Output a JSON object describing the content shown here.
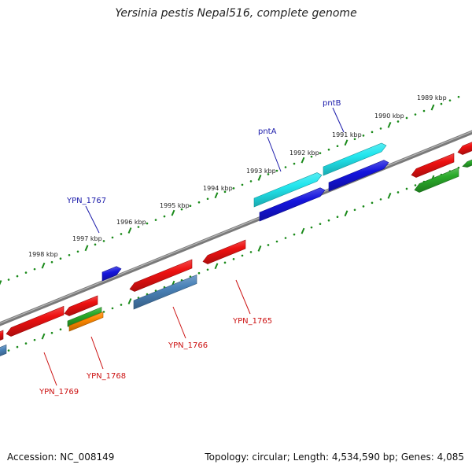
{
  "title": "Yersinia pestis Nepal516, complete genome",
  "footer": {
    "accession": "Accession: NC_008149",
    "summary": "Topology: circular; Length: 4,534,590 bp; Genes: 4,085"
  },
  "colors": {
    "backbone": "#7a7a7a",
    "tick": "#1a8a1a",
    "forward_label": "#1a1aaa",
    "reverse_label": "#cc1111",
    "red": "#ee1111",
    "cyan": "#22e6ee",
    "blue": "#1414dd",
    "steelblue": "#4a82b8",
    "green": "#2aaa2a",
    "orange": "#ff8800"
  },
  "kbp_labels": [
    "1989 kbp",
    "1990 kbp",
    "1991 kbp",
    "1992 kbp",
    "1993 kbp",
    "1994 kbp",
    "1995 kbp",
    "1996 kbp",
    "1997 kbp",
    "1998 kbp"
  ],
  "gene_labels": [
    {
      "text": "pntB",
      "strand": "forward"
    },
    {
      "text": "pntA",
      "strand": "forward"
    },
    {
      "text": "YPN_1767",
      "strand": "forward"
    },
    {
      "text": "YPN_1765",
      "strand": "reverse"
    },
    {
      "text": "YPN_1766",
      "strand": "reverse"
    },
    {
      "text": "YPN_1768",
      "strand": "reverse"
    },
    {
      "text": "YPN_1769",
      "strand": "reverse"
    }
  ],
  "features": [
    {
      "name": "gene-cyan-pntB-segment",
      "color": "cyan"
    },
    {
      "name": "gene-cyan-pntA-segment",
      "color": "cyan"
    },
    {
      "name": "cds-blue-pntB",
      "color": "blue"
    },
    {
      "name": "cds-blue-pntA",
      "color": "blue"
    },
    {
      "name": "cds-blue-ypn1767",
      "color": "blue"
    },
    {
      "name": "gene-red-right-top",
      "color": "red"
    },
    {
      "name": "gene-red-right",
      "color": "red"
    },
    {
      "name": "gene-green-right-top",
      "color": "green"
    },
    {
      "name": "gene-green-right",
      "color": "green"
    },
    {
      "name": "gene-red-ypn1765",
      "color": "red"
    },
    {
      "name": "gene-red-ypn1766",
      "color": "red"
    },
    {
      "name": "cds-steelblue-ypn1766",
      "color": "steelblue"
    },
    {
      "name": "gene-red-ypn1768",
      "color": "red"
    },
    {
      "name": "gene-green-ypn1768",
      "color": "green"
    },
    {
      "name": "cds-orange-ypn1768",
      "color": "orange"
    },
    {
      "name": "gene-red-ypn1769",
      "color": "red"
    },
    {
      "name": "gene-red-left-edge",
      "color": "red"
    },
    {
      "name": "cds-steelblue-left-edge",
      "color": "steelblue"
    }
  ]
}
